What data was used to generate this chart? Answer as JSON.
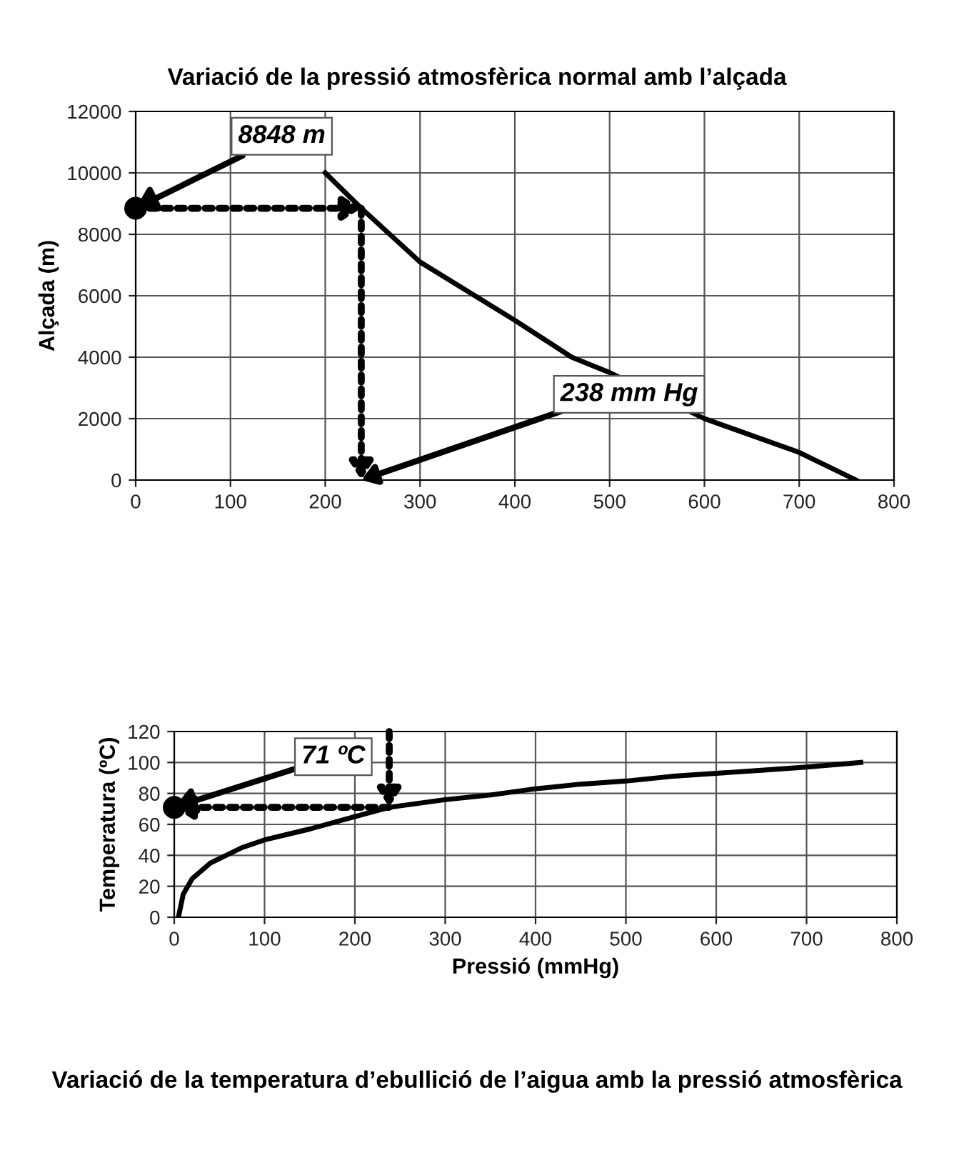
{
  "chart_data": [
    {
      "type": "line",
      "title": "Variació de la pressió atmosfèrica normal amb l’alçada",
      "ylabel": "Alçada (m)",
      "xlim": [
        0,
        800
      ],
      "ylim": [
        0,
        12000
      ],
      "xticks": [
        0,
        100,
        200,
        300,
        400,
        500,
        600,
        700,
        800
      ],
      "yticks": [
        0,
        2000,
        4000,
        6000,
        8000,
        10000,
        12000
      ],
      "grid": true,
      "marker": "none",
      "line_style": "solid",
      "series": [
        {
          "color": "#000000",
          "x": [
            200,
            238,
            300,
            400,
            460,
            500,
            600,
            700,
            760
          ],
          "values": [
            10000,
            8848,
            7100,
            5200,
            4000,
            3500,
            2000,
            900,
            0
          ]
        },
        {
          "type": "scatter",
          "color": "#000000",
          "marker": "circle",
          "x": [
            0
          ],
          "values": [
            8848
          ]
        }
      ],
      "annotations": [
        {
          "text": "8848 m",
          "x": 0,
          "y": 8848
        },
        "238 mm Hg"
      ]
    },
    {
      "type": "line",
      "title": "Variació de la temperatura d’ebullició de l’aigua amb la pressió atmosfèrica",
      "xlabel": "Pressió (mmHg)",
      "ylabel": "Temperatura (ºC)",
      "xlim": [
        0,
        800
      ],
      "ylim": [
        0,
        120
      ],
      "xticks": [
        0,
        100,
        200,
        300,
        400,
        500,
        600,
        700,
        800
      ],
      "yticks": [
        0,
        20,
        40,
        60,
        80,
        100,
        120
      ],
      "grid": true,
      "marker": "none",
      "line_style": "solid",
      "series": [
        {
          "color": "#000000",
          "x": [
            4.6,
            10,
            20,
            40,
            75,
            100,
            150,
            200,
            238,
            300,
            350,
            400,
            450,
            500,
            550,
            600,
            650,
            700,
            760
          ],
          "values": [
            0,
            15,
            25,
            35,
            45,
            50,
            57,
            65,
            71,
            76,
            79,
            83,
            86,
            88,
            91,
            93,
            95,
            97,
            100
          ]
        },
        {
          "type": "scatter",
          "color": "#000000",
          "marker": "circle",
          "x": [
            0
          ],
          "values": [
            71
          ]
        }
      ],
      "annotations": [
        {
          "text": "71 ºC",
          "x": 0,
          "y": 71
        }
      ]
    }
  ]
}
